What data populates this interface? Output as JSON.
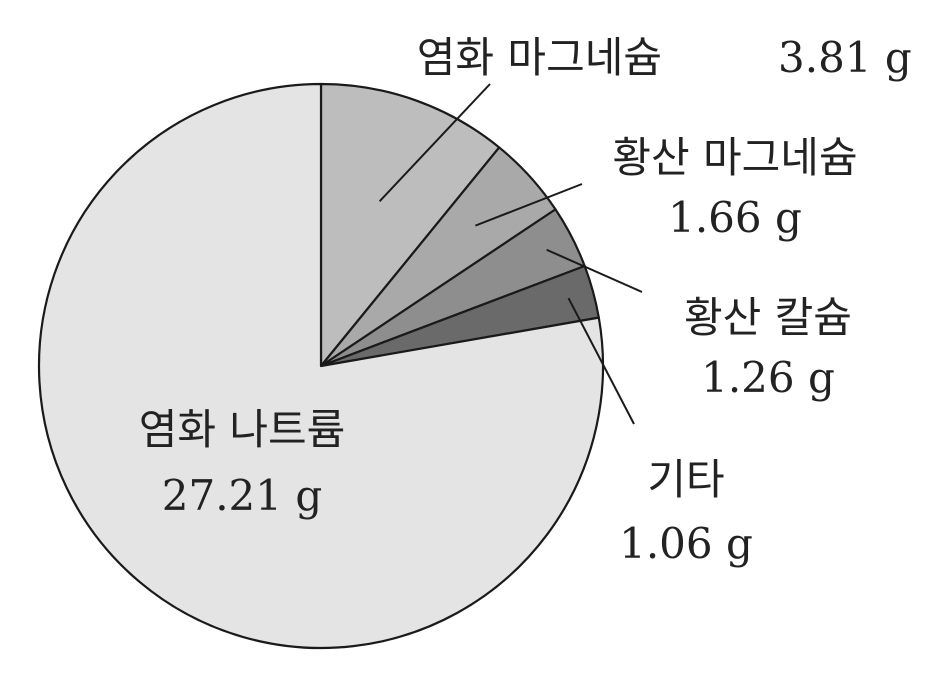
{
  "chart_data": {
    "type": "pie",
    "unit": "g",
    "start_angle_deg": 0,
    "direction": "clockwise",
    "slices": [
      {
        "label": "염화 마그네슘",
        "value": 3.81,
        "value_text": "3.81 g",
        "color": "#bdbdbd"
      },
      {
        "label": "황산 마그네슘",
        "value": 1.66,
        "value_text": "1.66 g",
        "color": "#a9a9a9"
      },
      {
        "label": "황산 칼슘",
        "value": 1.26,
        "value_text": "1.26 g",
        "color": "#8e8e8e"
      },
      {
        "label": "기타",
        "value": 1.06,
        "value_text": "1.06 g",
        "color": "#6a6a6a"
      },
      {
        "label": "염화 나트륨",
        "value": 27.21,
        "value_text": "27.21 g",
        "color": "#e4e4e4"
      }
    ]
  }
}
